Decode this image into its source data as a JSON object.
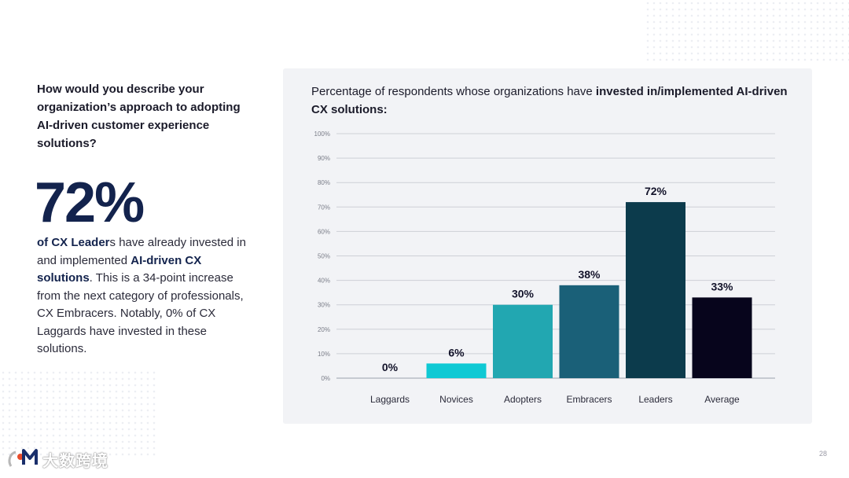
{
  "left": {
    "question": "How would you describe your organization’s approach to adopting AI-driven customer experience solutions?",
    "big_stat": "72%",
    "desc_hl1": "of CX Leader",
    "desc_t1": "s have already invested in and implemented ",
    "desc_hl2": "AI-driven CX solutions",
    "desc_t2": ". This is a 34-point increase from the next category of professionals, CX Embracers. Notably, 0% of CX Laggards have invested in these solutions."
  },
  "chart_title": {
    "prefix": "Percentage of respondents  whose organizations have ",
    "bold": "invested in/implemented AI-driven CX solutions:"
  },
  "chart_data": {
    "type": "bar",
    "title": "Percentage of respondents whose organizations have invested in/implemented AI-driven CX solutions:",
    "categories": [
      "Laggards",
      "Novices",
      "Adopters",
      "Embracers",
      "Leaders",
      "Average"
    ],
    "values": [
      0,
      6,
      30,
      38,
      72,
      33
    ],
    "data_labels": [
      "0%",
      "6%",
      "30%",
      "38%",
      "72%",
      "33%"
    ],
    "colors": [
      "#0fc9d4",
      "#0fc9d4",
      "#22a7b1",
      "#1a6078",
      "#0c3b4c",
      "#07051c"
    ],
    "yticks": [
      "0%",
      "10%",
      "20%",
      "30%",
      "40%",
      "50%",
      "60%",
      "70%",
      "80%",
      "90%",
      "100%"
    ],
    "ylim": [
      0,
      100
    ],
    "grid": true,
    "xlabel": "",
    "ylabel": ""
  },
  "footer": {
    "page_number": "28",
    "logo_text": "大数跨境"
  }
}
